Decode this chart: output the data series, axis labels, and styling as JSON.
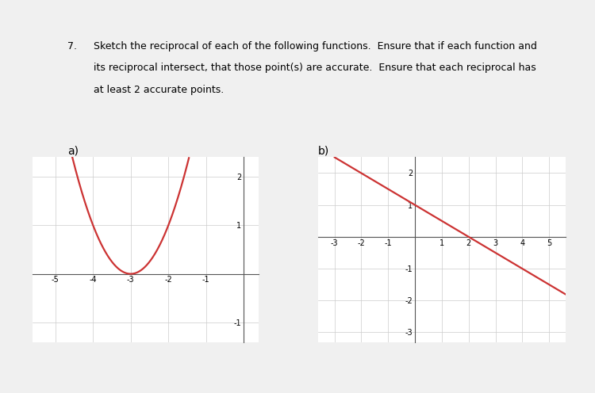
{
  "background_color": "#f0f0f0",
  "page_color": "#ffffff",
  "text_color": "#000000",
  "question_number": "7.",
  "question_line1": "Sketch the reciprocal of each of the following functions.  Ensure that if each function and",
  "question_line2": "its reciprocal intersect, that those point(s) are accurate.  Ensure that each reciprocal has",
  "question_line3": "at least 2 accurate points.",
  "label_a": "a)",
  "label_b": "b)",
  "chart_a": {
    "xlim": [
      -5.6,
      0.4
    ],
    "ylim": [
      -1.4,
      2.4
    ],
    "xticks": [
      -5,
      -4,
      -3,
      -2,
      -1,
      0
    ],
    "yticks": [
      -1,
      1,
      2
    ],
    "curve_color": "#cc3333",
    "curve_linewidth": 1.6,
    "vertex_x": -3,
    "vertex_y": 0,
    "axis_color": "#555555",
    "grid_color": "#cccccc",
    "tick_fontsize": 7
  },
  "chart_b": {
    "xlim": [
      -3.6,
      5.6
    ],
    "ylim": [
      -3.3,
      2.5
    ],
    "xticks": [
      -3,
      -2,
      -1,
      1,
      2,
      3,
      4,
      5
    ],
    "yticks": [
      -3,
      -2,
      -1,
      1,
      2
    ],
    "curve_color": "#cc3333",
    "curve_linewidth": 1.6,
    "slope": -0.5,
    "intercept": 1.0,
    "axis_color": "#555555",
    "grid_color": "#cccccc",
    "tick_fontsize": 7
  }
}
